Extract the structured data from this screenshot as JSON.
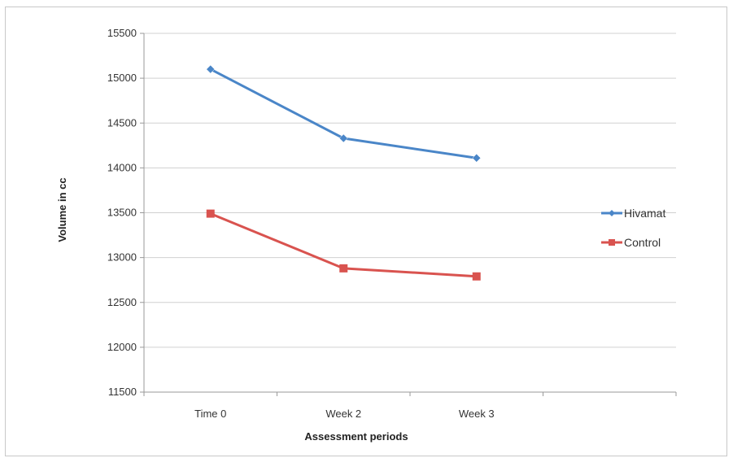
{
  "chart_data": {
    "type": "line",
    "title": "",
    "xlabel": "Assessment periods",
    "ylabel": "Volume in cc",
    "categories": [
      "Time 0",
      "Week 2",
      "Week 3"
    ],
    "ylim": [
      11500,
      15500
    ],
    "yticks": [
      11500,
      12000,
      12500,
      13000,
      13500,
      14000,
      14500,
      15000,
      15500
    ],
    "grid": true,
    "legend_position": "right",
    "series": [
      {
        "name": "Hivamat",
        "values": [
          15100,
          14330,
          14110
        ],
        "color": "#4a86c8",
        "marker": "diamond"
      },
      {
        "name": "Control",
        "values": [
          13490,
          12880,
          12790
        ],
        "color": "#d9534f",
        "marker": "square"
      }
    ]
  }
}
